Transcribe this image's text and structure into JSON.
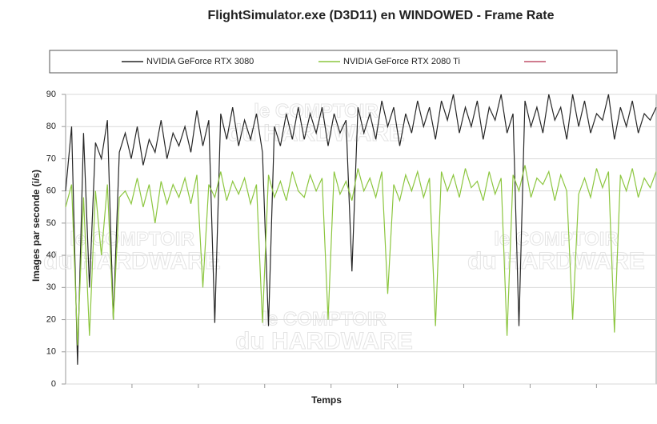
{
  "chart_data": {
    "type": "line",
    "title": "FlightSimulator.exe (D3D11) en WINDOWED - Frame Rate",
    "ylabel": "Images par seconde (i/s)",
    "xlabel": "Temps",
    "watermark": {
      "top": "le COMPTOIR",
      "bottom": "du HARDWARE"
    },
    "ylim": [
      0,
      90
    ],
    "yticks": [
      0,
      10,
      20,
      30,
      40,
      50,
      60,
      70,
      80,
      90
    ],
    "grid": true,
    "series": [
      {
        "name": "NVIDIA GeForce RTX 3080",
        "color": "#262626",
        "values": [
          60,
          80,
          6,
          78,
          30,
          75,
          70,
          82,
          20,
          72,
          78,
          70,
          80,
          68,
          76,
          72,
          82,
          70,
          78,
          74,
          80,
          72,
          85,
          74,
          82,
          19,
          84,
          76,
          86,
          74,
          82,
          76,
          84,
          72,
          18,
          80,
          74,
          84,
          76,
          86,
          76,
          84,
          78,
          86,
          74,
          84,
          78,
          82,
          35,
          86,
          78,
          84,
          76,
          88,
          80,
          86,
          74,
          84,
          78,
          88,
          80,
          86,
          76,
          88,
          82,
          90,
          78,
          86,
          80,
          88,
          76,
          86,
          82,
          90,
          78,
          84,
          18,
          88,
          80,
          86,
          78,
          90,
          82,
          86,
          76,
          90,
          80,
          88,
          78,
          84,
          82,
          90,
          76,
          86,
          80,
          88,
          78,
          84,
          82,
          86
        ]
      },
      {
        "name": "NVIDIA GeForce RTX 2080 Ti",
        "color": "#8cc63f",
        "values": [
          55,
          62,
          12,
          58,
          15,
          60,
          40,
          62,
          20,
          58,
          60,
          56,
          64,
          55,
          62,
          50,
          63,
          56,
          62,
          58,
          64,
          56,
          65,
          30,
          62,
          58,
          66,
          57,
          63,
          59,
          64,
          56,
          62,
          19,
          65,
          58,
          63,
          57,
          66,
          60,
          58,
          65,
          60,
          64,
          20,
          66,
          59,
          63,
          57,
          67,
          60,
          64,
          58,
          66,
          28,
          62,
          57,
          65,
          60,
          66,
          58,
          64,
          18,
          66,
          60,
          65,
          58,
          67,
          61,
          63,
          57,
          66,
          59,
          64,
          15,
          65,
          60,
          68,
          58,
          64,
          62,
          66,
          57,
          65,
          60,
          20,
          59,
          64,
          58,
          67,
          61,
          66,
          16,
          65,
          60,
          67,
          58,
          64,
          61,
          66
        ]
      }
    ]
  }
}
